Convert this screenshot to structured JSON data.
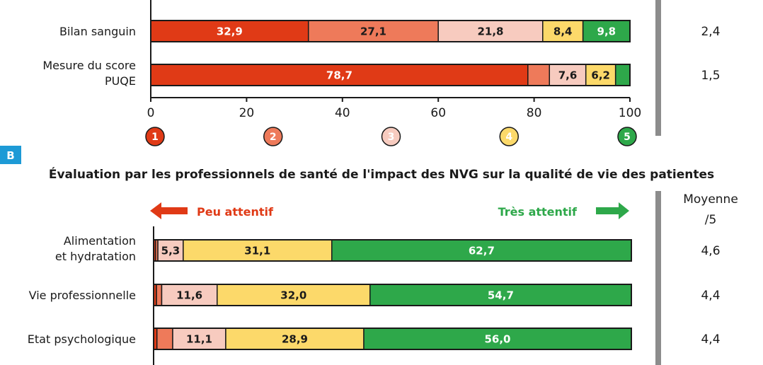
{
  "colors": {
    "1": "#e03a16",
    "2": "#ee7a5a",
    "3": "#f7cbbf",
    "4": "#fcd96a",
    "5": "#2ea84a",
    "divider": "#8c8c8c",
    "panel_badge": "#1d9ad6"
  },
  "chart_data": [
    {
      "type": "bar",
      "orientation": "horizontal",
      "stacked": true,
      "categories": [
        "Bilan sanguin",
        "Mesure du score PUQE"
      ],
      "series": [
        {
          "values": [
            32.9,
            78.7
          ]
        },
        {
          "values": [
            27.1,
            4.5
          ]
        },
        {
          "values": [
            21.8,
            7.6
          ]
        },
        {
          "values": [
            8.4,
            6.2
          ]
        },
        {
          "values": [
            9.8,
            3.0
          ]
        }
      ],
      "data_labels": [
        [
          "32,9",
          "27,1",
          "21,8",
          "8,4",
          "9,8"
        ],
        [
          "78,7",
          "",
          "7,6",
          "6,2",
          ""
        ]
      ],
      "xlim": [
        0,
        100
      ],
      "x_ticks": [
        "0",
        "20",
        "40",
        "60",
        "80",
        "100"
      ],
      "scale_legend": [
        "1",
        "2",
        "3",
        "4",
        "5"
      ],
      "means": [
        "2,4",
        "1,5"
      ]
    },
    {
      "type": "bar",
      "orientation": "horizontal",
      "stacked": true,
      "panel_label": "B",
      "title": "Évaluation par les professionnels de santé de l'impact des NVG sur la qualité de vie des patientes",
      "categories": [
        "Alimentation et hydratation",
        "Vie professionnelle",
        "Etat psychologique"
      ],
      "series": [
        {
          "values": [
            0.4,
            0.6,
            0.7
          ]
        },
        {
          "values": [
            0.5,
            1.1,
            3.3
          ]
        },
        {
          "values": [
            5.3,
            11.6,
            11.1
          ]
        },
        {
          "values": [
            31.1,
            32.0,
            28.9
          ]
        },
        {
          "values": [
            62.7,
            54.7,
            56.0
          ]
        }
      ],
      "data_labels": [
        [
          "",
          "",
          "5,3",
          "31,1",
          "62,7"
        ],
        [
          "",
          "",
          "11,6",
          "32,0",
          "54,7"
        ],
        [
          "",
          "",
          "11,1",
          "28,9",
          "56,0"
        ]
      ],
      "xlim": [
        0,
        100
      ],
      "left_arrow_label": "Peu attentif",
      "right_arrow_label": "Très attentif",
      "mean_header": "Moyenne /5",
      "means": [
        "4,6",
        "4,4",
        "4,4"
      ]
    }
  ]
}
